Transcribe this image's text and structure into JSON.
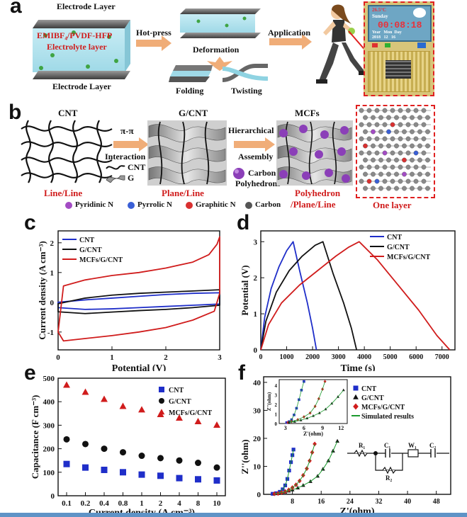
{
  "panels": {
    "a": "a",
    "b": "b",
    "c": "c",
    "d": "d",
    "e": "e",
    "f": "f"
  },
  "panel_a": {
    "electrode_top": "Electrode Layer",
    "electrolyte": "EMIBF₄/PVDF-HFP",
    "electrolyte_layer": "Electrolyte layer",
    "electrode_bottom": "Electrode Layer",
    "hot_press": "Hot-press",
    "deformation": "Deformation",
    "folding": "Folding",
    "twisting": "Twisting",
    "application": "Application",
    "device_temp": "26.5°C",
    "device_day": "Sunday",
    "device_time": "00:08:18",
    "device_header": "Year   Mon  Day",
    "device_values": "2018   12   16"
  },
  "panel_b": {
    "cnt": "CNT",
    "gcnt": "G/CNT",
    "mcfs": "MCFs",
    "pipi": "π-π",
    "interaction": "Interaction",
    "legend_cnt": "CNT",
    "legend_g": "G",
    "hierarchical": "Hierarchical",
    "assembly": "Assembly",
    "carbon_poly_1": "Carbon",
    "carbon_poly_2": "Polyhedrons",
    "line_line": "Line/Line",
    "plane_line": "Plane/Line",
    "poly_1": "Polyhedron",
    "poly_2": "/Plane/Line",
    "one_layer": "One layer",
    "legend": [
      {
        "label": "Pyridinic N",
        "color": "#a34cc4"
      },
      {
        "label": "Pyrrolic N",
        "color": "#3a5fd6"
      },
      {
        "label": "Graphitic N",
        "color": "#d93030"
      },
      {
        "label": "Carbon",
        "color": "#555555"
      }
    ]
  },
  "chart_data": [
    {
      "panel": "c",
      "type": "line",
      "xlabel": "Potential (V)",
      "ylabel": "Current density (A cm⁻³)",
      "xlim": [
        0,
        3
      ],
      "ylim": [
        -1.6,
        2.4
      ],
      "xticks": [
        "0",
        "1",
        "2",
        "3"
      ],
      "yticks": [
        "-1",
        "0",
        "1",
        "2"
      ],
      "legend_position": "top-left",
      "series": [
        {
          "name": "CNT",
          "color": "#1f2ec9",
          "x": [
            0,
            0.5,
            1,
            1.5,
            2,
            2.5,
            3,
            3,
            2.5,
            2,
            1.5,
            1,
            0.5,
            0
          ],
          "y": [
            0.0,
            0.08,
            0.14,
            0.2,
            0.26,
            0.3,
            0.32,
            -0.06,
            -0.1,
            -0.14,
            -0.18,
            -0.22,
            -0.24,
            -0.18
          ]
        },
        {
          "name": "G/CNT",
          "color": "#111111",
          "x": [
            0,
            0.5,
            1,
            1.5,
            2,
            2.5,
            3,
            3,
            2.5,
            2,
            1.5,
            1,
            0.5,
            0
          ],
          "y": [
            -0.05,
            0.14,
            0.24,
            0.3,
            0.34,
            0.38,
            0.42,
            -0.1,
            -0.18,
            -0.24,
            -0.28,
            -0.33,
            -0.38,
            -0.32
          ]
        },
        {
          "name": "MCFs/G/CNT",
          "color": "#d01c1c",
          "x": [
            0,
            0.1,
            0.5,
            1,
            1.5,
            2,
            2.5,
            2.8,
            2.95,
            3,
            3,
            2.9,
            2.5,
            2,
            1.5,
            1,
            0.5,
            0.1,
            0
          ],
          "y": [
            -1.0,
            0.55,
            0.75,
            0.9,
            1.0,
            1.15,
            1.35,
            1.6,
            1.95,
            2.2,
            0.3,
            -0.3,
            -0.6,
            -0.85,
            -1.0,
            -1.12,
            -1.22,
            -1.3,
            -1.0
          ]
        }
      ]
    },
    {
      "panel": "d",
      "type": "line",
      "xlabel": "Time (s)",
      "ylabel": "Potential (V)",
      "xlim": [
        0,
        7500
      ],
      "ylim": [
        0,
        3.3
      ],
      "xticks": [
        "0",
        "1000",
        "2000",
        "3000",
        "4000",
        "5000",
        "6000",
        "7000"
      ],
      "yticks": [
        "0",
        "1",
        "2",
        "3"
      ],
      "legend_position": "top-right",
      "series": [
        {
          "name": "CNT",
          "color": "#1f2ec9",
          "x": [
            0,
            150,
            400,
            700,
            1000,
            1250,
            1500,
            1800,
            2000,
            2150
          ],
          "y": [
            0,
            0.9,
            1.7,
            2.3,
            2.75,
            3.0,
            2.2,
            1.3,
            0.6,
            0
          ]
        },
        {
          "name": "G/CNT",
          "color": "#111111",
          "x": [
            0,
            200,
            600,
            1100,
            1600,
            2100,
            2400,
            2800,
            3200,
            3500,
            3700
          ],
          "y": [
            0,
            0.8,
            1.6,
            2.2,
            2.6,
            2.9,
            3.0,
            2.1,
            1.3,
            0.6,
            0
          ]
        },
        {
          "name": "MCFs/G/CNT",
          "color": "#d01c1c",
          "x": [
            0,
            300,
            800,
            1500,
            2200,
            2900,
            3400,
            3800,
            4500,
            5300,
            6100,
            6800,
            7300
          ],
          "y": [
            0,
            0.7,
            1.3,
            1.8,
            2.2,
            2.6,
            2.85,
            3.0,
            2.5,
            1.8,
            1.1,
            0.4,
            0
          ]
        }
      ]
    },
    {
      "panel": "e",
      "type": "scatter",
      "xlabel": "Current density (A cm⁻³)",
      "ylabel": "Capacitance (F cm⁻³)",
      "categories": [
        "0.1",
        "0.2",
        "0.4",
        "0.8",
        "1",
        "2",
        "4",
        "8",
        "10"
      ],
      "ylim": [
        0,
        500
      ],
      "yticks": [
        "0",
        "100",
        "200",
        "300",
        "400",
        "500"
      ],
      "legend_position": "top-right",
      "series": [
        {
          "name": "CNT",
          "color": "#1f2ec9",
          "marker": "square",
          "values": [
            135,
            120,
            110,
            100,
            90,
            85,
            75,
            70,
            65
          ]
        },
        {
          "name": "G/CNT",
          "color": "#111111",
          "marker": "circle",
          "values": [
            240,
            220,
            200,
            185,
            170,
            160,
            150,
            140,
            120
          ]
        },
        {
          "name": "MCFs/G/CNT",
          "color": "#d01c1c",
          "marker": "triangle",
          "values": [
            470,
            440,
            410,
            380,
            365,
            345,
            330,
            315,
            300
          ]
        }
      ]
    },
    {
      "panel": "f",
      "type": "scatter",
      "xlabel": "Z'(ohm)",
      "ylabel": "Z''(ohm)",
      "xlim": [
        0,
        52
      ],
      "ylim": [
        0,
        42
      ],
      "xticks": [
        "8",
        "16",
        "24",
        "32",
        "40",
        "48"
      ],
      "yticks": [
        "0",
        "10",
        "20",
        "30",
        "40"
      ],
      "legend_position": "top-right",
      "simulated_label": "Simulated results",
      "series": [
        {
          "name": "CNT",
          "color": "#1f2ec9",
          "marker": "square",
          "x": [
            2.5,
            3.5,
            4.5,
            5.3,
            6,
            6.6,
            7.1,
            7.6,
            8.0,
            8.3
          ],
          "y": [
            0.2,
            0.4,
            0.9,
            1.8,
            3.2,
            5.5,
            8.5,
            11.5,
            14,
            16
          ]
        },
        {
          "name": "G/CNT",
          "color": "#111111",
          "marker": "triangle",
          "x": [
            3,
            4,
            5,
            6,
            7,
            8,
            9.5,
            11,
            13,
            15,
            16.5,
            18,
            19.3,
            20.5
          ],
          "y": [
            0.2,
            0.3,
            0.5,
            0.8,
            1.2,
            1.6,
            2.3,
            3.2,
            4.6,
            6.5,
            9,
            12,
            15.5,
            19
          ]
        },
        {
          "name": "MCFs/G/CNT",
          "color": "#d01c1c",
          "marker": "diamond",
          "x": [
            3,
            4,
            5,
            6,
            7,
            8,
            9,
            10,
            11,
            12,
            12.8,
            13.5,
            14.2
          ],
          "y": [
            0.2,
            0.3,
            0.6,
            1.0,
            1.6,
            2.4,
            3.4,
            4.8,
            6.8,
            9.2,
            12,
            15,
            18
          ]
        }
      ],
      "inset": {
        "xticks": [
          "3",
          "6",
          "9",
          "12"
        ],
        "yticks": [
          "0",
          "1",
          "2",
          "3",
          "4"
        ],
        "xlabel": "Z'(ohm)",
        "ylabel": "Z''(ohm)"
      },
      "circuit": {
        "r1": "R₁",
        "c1": "C₁",
        "w1": "W₁",
        "c2": "C₂",
        "r2": "R₂"
      }
    }
  ]
}
